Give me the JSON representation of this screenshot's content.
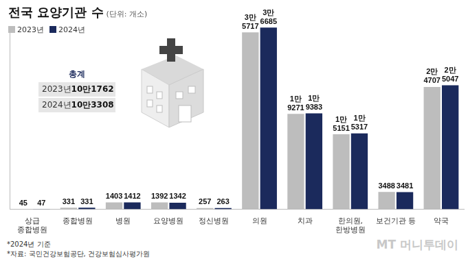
{
  "chart_data": {
    "type": "bar",
    "title": "전국 요양기관 수",
    "subtitle": "(단위: 개소)",
    "categories": [
      [
        "상급",
        "종합병원"
      ],
      "종합병원",
      "병원",
      "요양병원",
      "정신병원",
      "의원",
      "치과",
      [
        "한의원,",
        "한방병원"
      ],
      "보건기관 등",
      "약국"
    ],
    "series": [
      {
        "name": "2023년",
        "color": "#bdbdbd",
        "values": [
          45,
          331,
          1403,
          1392,
          257,
          35717,
          19271,
          15151,
          3488,
          24707
        ],
        "value_labels": [
          "45",
          "331",
          "1403",
          "1392",
          "257",
          "3만 5717",
          "1만 9271",
          "1만 5151",
          "3488",
          "2만 4707"
        ]
      },
      {
        "name": "2024년",
        "color": "#1b2a5c",
        "values": [
          47,
          331,
          1412,
          1342,
          263,
          36685,
          19383,
          15317,
          3481,
          25047
        ],
        "value_labels": [
          "47",
          "331",
          "1412",
          "1342",
          "263",
          "3만 6685",
          "1만 9383",
          "1만 5317",
          "3481",
          "2만 5047"
        ]
      }
    ],
    "ylim": [
      0,
      37000
    ],
    "data_labels": true,
    "tick_labels": "x",
    "grid": false,
    "total_box": {
      "title": "총계",
      "rows": [
        [
          "2023년",
          "10만1762"
        ],
        [
          "2024년",
          "10만3308"
        ]
      ]
    },
    "notes": [
      "*2024년 기준",
      "*자료: 국민건강보험공단, 건강보험심사평가원"
    ],
    "watermark": "MT 머니투데이"
  }
}
